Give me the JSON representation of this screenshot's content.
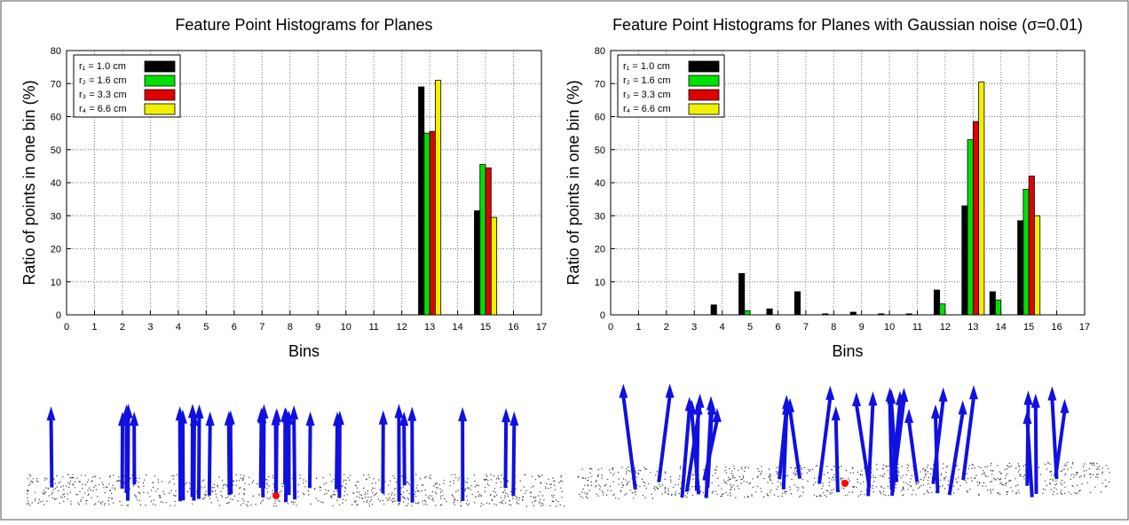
{
  "chart_data": [
    {
      "type": "bar",
      "title": "Feature Point Histograms for Planes",
      "x_label": "Bins",
      "y_label": "Ratio of points in one bin (%)",
      "x": [
        0,
        1,
        2,
        3,
        4,
        5,
        6,
        7,
        8,
        9,
        10,
        11,
        12,
        13,
        14,
        15,
        16
      ],
      "series": [
        {
          "name": "r₁ = 1.0 cm",
          "color": "#000000",
          "values": [
            0,
            0,
            0,
            0,
            0,
            0,
            0,
            0,
            0,
            0,
            0,
            0,
            0,
            69,
            0,
            31.5,
            0
          ]
        },
        {
          "name": "r₂ = 1.6 cm",
          "color": "#00e000",
          "values": [
            0,
            0,
            0,
            0,
            0,
            0,
            0,
            0,
            0,
            0,
            0,
            0,
            0,
            55,
            0,
            45.5,
            0
          ]
        },
        {
          "name": "r₃ = 3.3 cm",
          "color": "#e00000",
          "values": [
            0,
            0,
            0,
            0,
            0,
            0,
            0,
            0,
            0,
            0,
            0,
            0,
            0,
            55.5,
            0,
            44.5,
            0
          ]
        },
        {
          "name": "r₄ = 6.6 cm",
          "color": "#f0f000",
          "values": [
            0,
            0,
            0,
            0,
            0,
            0,
            0,
            0,
            0,
            0,
            0,
            0,
            0,
            71,
            0,
            29.5,
            0
          ]
        }
      ],
      "xlim": [
        0,
        17
      ],
      "xticks": [
        0,
        1,
        2,
        3,
        4,
        5,
        6,
        7,
        8,
        9,
        10,
        11,
        12,
        13,
        14,
        15,
        16,
        17
      ],
      "ylim": [
        0,
        80
      ],
      "yticks": [
        0,
        10,
        20,
        30,
        40,
        50,
        60,
        70,
        80
      ],
      "grid": true,
      "legend": "upper left"
    },
    {
      "type": "bar",
      "title": "Feature Point Histograms for Planes with Gaussian noise (σ=0.01)",
      "x_label": "Bins",
      "y_label": "Ratio of points in one bin (%)",
      "x": [
        0,
        1,
        2,
        3,
        4,
        5,
        6,
        7,
        8,
        9,
        10,
        11,
        12,
        13,
        14,
        15,
        16
      ],
      "series": [
        {
          "name": "r₁ = 1.0 cm",
          "color": "#000000",
          "values": [
            0,
            0,
            0,
            0,
            3,
            12.5,
            1.8,
            7,
            0.3,
            0.8,
            0.3,
            0.3,
            7.5,
            33,
            7,
            28.5,
            0
          ]
        },
        {
          "name": "r₂ = 1.6 cm",
          "color": "#00e000",
          "values": [
            0,
            0,
            0,
            0,
            0,
            1.2,
            0,
            0,
            0,
            0,
            0,
            0,
            3.3,
            53,
            4.5,
            38,
            0
          ]
        },
        {
          "name": "r₃ = 3.3 cm",
          "color": "#e00000",
          "values": [
            0,
            0,
            0,
            0,
            0,
            0,
            0,
            0,
            0,
            0,
            0,
            0,
            0,
            58.5,
            0,
            42,
            0
          ]
        },
        {
          "name": "r₄ = 6.6 cm",
          "color": "#f0f000",
          "values": [
            0,
            0,
            0,
            0,
            0,
            0,
            0,
            0,
            0,
            0,
            0,
            0,
            0,
            70.5,
            0,
            30,
            0
          ]
        }
      ],
      "xlim": [
        0,
        17
      ],
      "xticks": [
        0,
        1,
        2,
        3,
        4,
        5,
        6,
        7,
        8,
        9,
        10,
        11,
        12,
        13,
        14,
        15,
        16,
        17
      ],
      "ylim": [
        0,
        80
      ],
      "yticks": [
        0,
        10,
        20,
        30,
        40,
        50,
        60,
        70,
        80
      ],
      "grid": true,
      "legend": "upper left"
    }
  ]
}
